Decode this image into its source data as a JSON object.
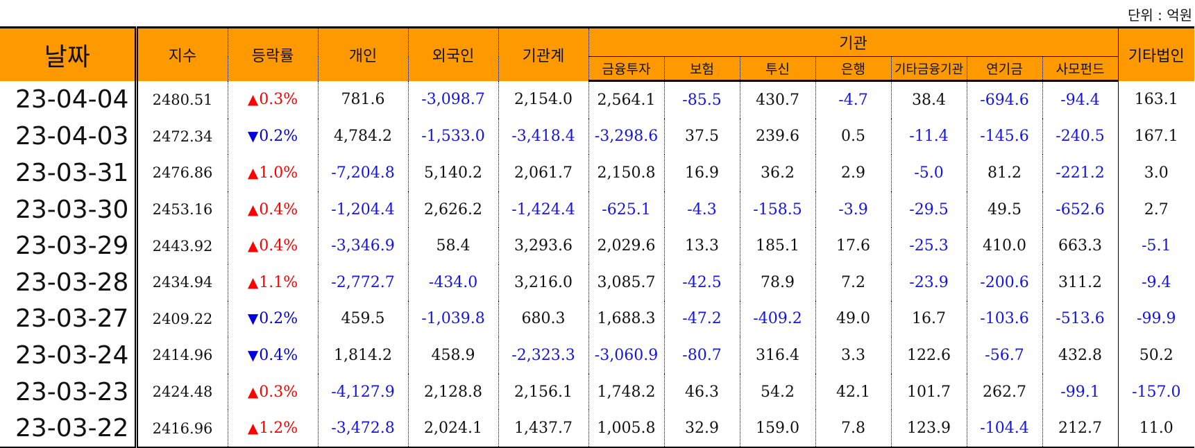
{
  "unit_label": "단위 : 억원",
  "headers": {
    "date": "날짜",
    "index": "지수",
    "change": "등락률",
    "individual": "개인",
    "foreign": "외국인",
    "institution_total": "기관계",
    "institution": "기관",
    "other_corp": "기타법인",
    "institution_sub": [
      "금융투자",
      "보험",
      "투신",
      "은행",
      "기타금융기관",
      "연기금",
      "사모펀드"
    ]
  },
  "colors": {
    "header_bg": "#FF9900",
    "negative": "#1414E6",
    "up": "#FF0000",
    "down": "#0000DD"
  },
  "rows": [
    {
      "date": "23-04-04",
      "index": "2480.51",
      "dir": "up",
      "change": "0.3%",
      "cells": [
        "781.6",
        "-3,098.7",
        "2,154.0",
        "2,564.1",
        "-85.5",
        "430.7",
        "-4.7",
        "38.4",
        "-694.6",
        "-94.4",
        "163.1"
      ]
    },
    {
      "date": "23-04-03",
      "index": "2472.34",
      "dir": "down",
      "change": "0.2%",
      "cells": [
        "4,784.2",
        "-1,533.0",
        "-3,418.4",
        "-3,298.6",
        "37.5",
        "239.6",
        "0.5",
        "-11.4",
        "-145.6",
        "-240.5",
        "167.1"
      ]
    },
    {
      "date": "23-03-31",
      "index": "2476.86",
      "dir": "up",
      "change": "1.0%",
      "cells": [
        "-7,204.8",
        "5,140.2",
        "2,061.7",
        "2,150.8",
        "16.9",
        "36.2",
        "2.9",
        "-5.0",
        "81.2",
        "-221.2",
        "3.0"
      ]
    },
    {
      "date": "23-03-30",
      "index": "2453.16",
      "dir": "up",
      "change": "0.4%",
      "cells": [
        "-1,204.4",
        "2,626.2",
        "-1,424.4",
        "-625.1",
        "-4.3",
        "-158.5",
        "-3.9",
        "-29.5",
        "49.5",
        "-652.6",
        "2.7"
      ]
    },
    {
      "date": "23-03-29",
      "index": "2443.92",
      "dir": "up",
      "change": "0.4%",
      "cells": [
        "-3,346.9",
        "58.4",
        "3,293.6",
        "2,029.6",
        "13.3",
        "185.1",
        "17.6",
        "-25.3",
        "410.0",
        "663.3",
        "-5.1"
      ]
    },
    {
      "date": "23-03-28",
      "index": "2434.94",
      "dir": "up",
      "change": "1.1%",
      "cells": [
        "-2,772.7",
        "-434.0",
        "3,216.0",
        "3,085.7",
        "-42.5",
        "78.9",
        "7.2",
        "-23.9",
        "-200.6",
        "311.2",
        "-9.4"
      ]
    },
    {
      "date": "23-03-27",
      "index": "2409.22",
      "dir": "down",
      "change": "0.2%",
      "cells": [
        "459.5",
        "-1,039.8",
        "680.3",
        "1,688.3",
        "-47.2",
        "-409.2",
        "49.0",
        "16.7",
        "-103.6",
        "-513.6",
        "-99.9"
      ]
    },
    {
      "date": "23-03-24",
      "index": "2414.96",
      "dir": "down",
      "change": "0.4%",
      "cells": [
        "1,814.2",
        "458.9",
        "-2,323.3",
        "-3,060.9",
        "-80.7",
        "316.4",
        "3.3",
        "122.6",
        "-56.7",
        "432.8",
        "50.2"
      ]
    },
    {
      "date": "23-03-23",
      "index": "2424.48",
      "dir": "up",
      "change": "0.3%",
      "cells": [
        "-4,127.9",
        "2,128.8",
        "2,156.1",
        "1,748.2",
        "46.3",
        "54.2",
        "42.1",
        "101.7",
        "262.7",
        "-99.1",
        "-157.0"
      ]
    },
    {
      "date": "23-03-22",
      "index": "2416.96",
      "dir": "up",
      "change": "1.2%",
      "cells": [
        "-3,472.8",
        "2,024.1",
        "1,437.7",
        "1,005.8",
        "32.9",
        "159.0",
        "7.8",
        "123.9",
        "-104.4",
        "212.7",
        "11.0"
      ]
    }
  ]
}
